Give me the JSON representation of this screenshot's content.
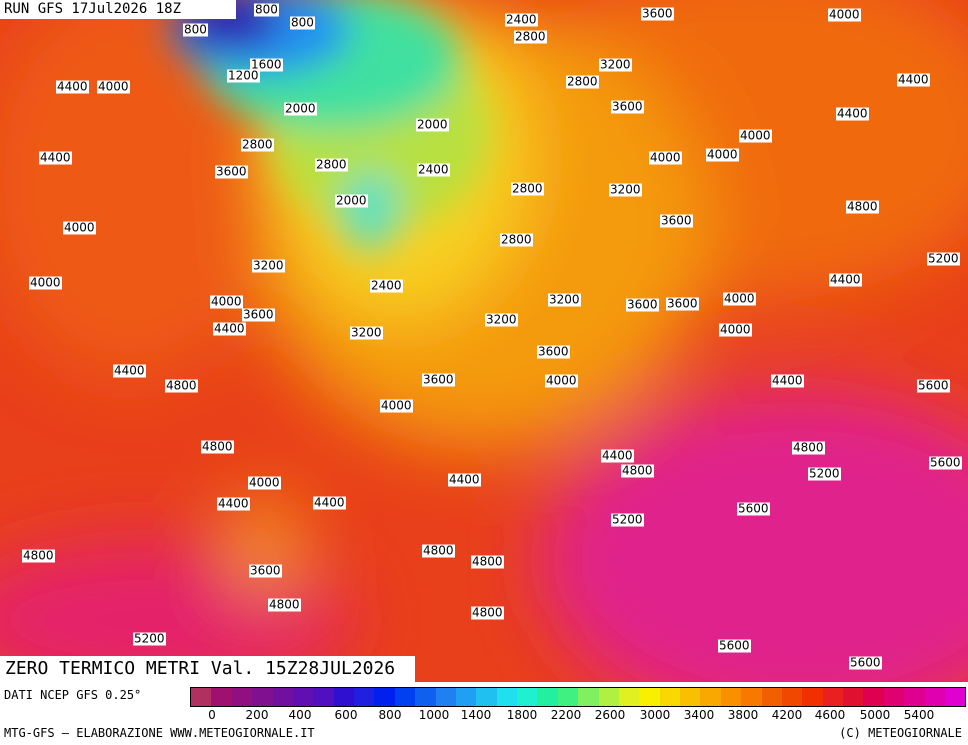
{
  "header": {
    "run": "RUN GFS 17Jul2026 18Z"
  },
  "map": {
    "contour_labels": [
      800,
      800,
      800,
      1600,
      1200,
      2000,
      2800,
      3600,
      2800,
      2000,
      2400,
      2000,
      2400,
      2800,
      3600,
      4000,
      3200,
      2800,
      3600,
      4400,
      4000,
      4400,
      4000,
      4000,
      4400,
      4400,
      4000,
      4000,
      4000,
      2800,
      3200,
      4800,
      3600,
      2800,
      5200,
      3200,
      4400,
      2400,
      4000,
      3600,
      4400,
      3200,
      3600,
      3600,
      4000,
      3200,
      3200,
      4000,
      3600,
      3600,
      4000,
      4400,
      4800,
      4400,
      5600,
      4000,
      4800,
      4800,
      4400,
      4800,
      5200,
      5600,
      4000,
      4400,
      4400,
      4400,
      5600,
      5200,
      4800,
      4800,
      4800,
      3600,
      4800,
      4800,
      5200,
      5600,
      5600
    ]
  },
  "title": "ZERO TERMICO METRI Val. 15Z28JUL2026",
  "legend": {
    "source": "DATI NCEP GFS 0.25°",
    "ticks": [
      0,
      200,
      400,
      600,
      800,
      1000,
      1400,
      1800,
      2200,
      2600,
      3000,
      3400,
      3800,
      4200,
      4600,
      5000,
      5400
    ]
  },
  "footer": {
    "left": "MTG-GFS — ELABORAZIONE WWW.METEOGIORNALE.IT",
    "right": "(C) METEOGIORNALE"
  }
}
